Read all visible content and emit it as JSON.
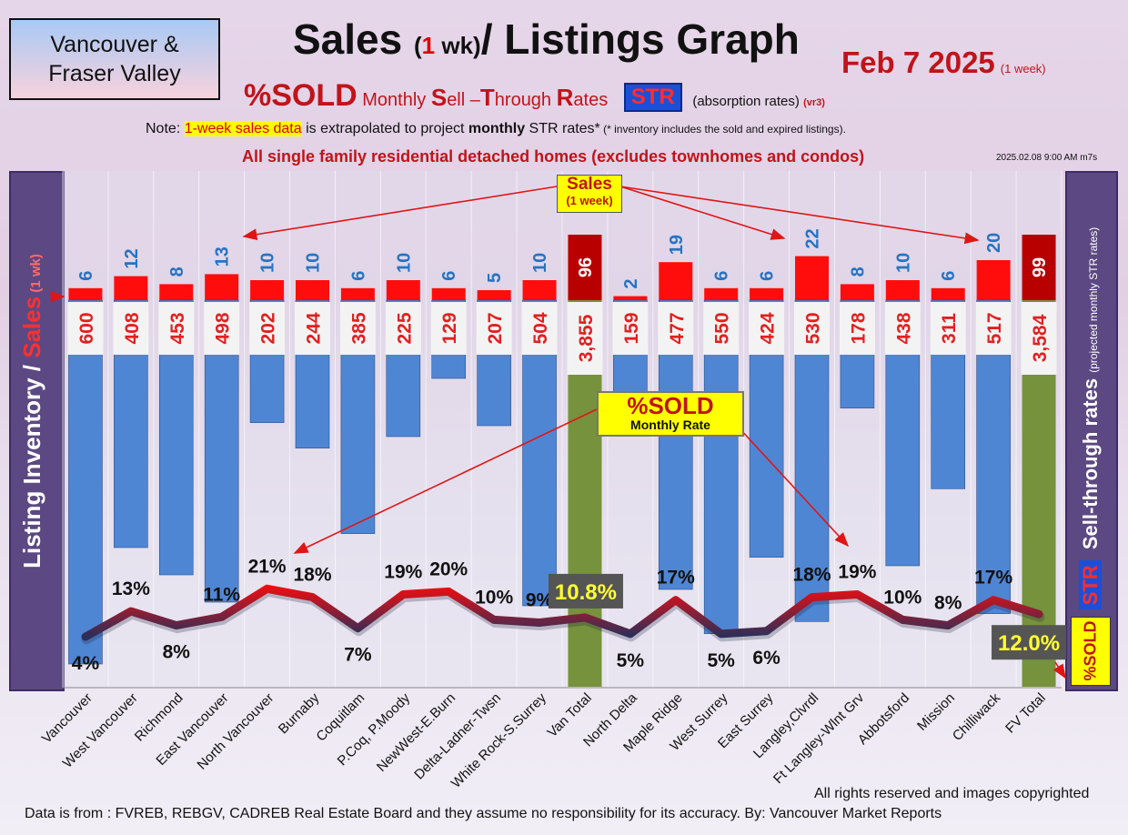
{
  "region": "Vancouver &\nFraser Valley",
  "title": {
    "pre": "Sales",
    "paren_open": "(",
    "one": "1",
    "wk": " wk)",
    "post": "/ Listings Graph"
  },
  "date": {
    "main": "Feb 7  2025",
    "sub": "(1 week)"
  },
  "subtitle": {
    "sold": "%SOLD",
    "p1": " Monthly ",
    "c1": "S",
    "p2": "ell –",
    "c2": "T",
    "p3": "hrough ",
    "c3": "R",
    "p4": "ates",
    "str": "STR",
    "absorb": "(absorption rates)",
    "ver": "(vr3)"
  },
  "note": {
    "pre": "Note: ",
    "highlight": "1-week sales data",
    "mid": " is extrapolated to project ",
    "bold": "monthly",
    "post": " STR rates*",
    "small": " (* inventory includes the sold and expired listings)."
  },
  "subhead": "All single family residential detached homes (excludes townhomes and condos)",
  "timestamp": "2025.02.08 9:00 AM m7s",
  "left_axis": {
    "a": "Listing Inventory ",
    "slash": "/ ",
    "sales": "Sales",
    "wk": " (1 wk)"
  },
  "right_axis": {
    "str": "STR",
    "main": " Sell-through rates ",
    "proj": "(projected monthly STR rates)"
  },
  "sold_side": "%SOLD",
  "callouts": {
    "sales_a": "Sales",
    "sales_b": "(1 week)",
    "sold_a": "%SOLD",
    "sold_b": "Monthly Rate"
  },
  "footer": {
    "rights": "All rights reserved and  images copyrighted",
    "source": "Data is from : FVREB, REBGV, CADREB Real Estate Board and they assume no responsibility for its accuracy. By: Vancouver Market Reports"
  },
  "colors": {
    "inventory_bar": "#4f86d4",
    "total_bar": "#76923c",
    "sales_bar": "#ff0d0d",
    "total_sales_bar": "#b80000",
    "line_high": "#ff0a0a",
    "line_low": "#2a2f5a",
    "panel": "#5c4882"
  },
  "chart_data": {
    "type": "bar",
    "categories": [
      "Vancouver",
      "West Vancouver",
      "Richmond",
      "East Vancouver",
      "North Vancouver",
      "Burnaby",
      "Coquitlam",
      "P.Coq, P.Moody",
      "NewWest-E.Burn",
      "Delta-Ladner-Twsn",
      "White Rock-S.Surrey",
      "Van Total",
      "North Delta",
      "Maple Ridge",
      "West Surrey",
      "East Surrey",
      "Langley,Clvrdl",
      "Ft Langley-Wlnt Grv",
      "Abbotsford",
      "Mission",
      "Chilliwack",
      "FV Total"
    ],
    "is_total": [
      false,
      false,
      false,
      false,
      false,
      false,
      false,
      false,
      false,
      false,
      false,
      true,
      false,
      false,
      false,
      false,
      false,
      false,
      false,
      false,
      false,
      true
    ],
    "series": [
      {
        "name": "Sales",
        "values": [
          6,
          12,
          8,
          13,
          10,
          10,
          6,
          10,
          6,
          5,
          10,
          96,
          2,
          19,
          6,
          6,
          22,
          8,
          10,
          6,
          20,
          99
        ]
      },
      {
        "name": "Listing Inventory",
        "values": [
          600,
          408,
          453,
          498,
          202,
          244,
          385,
          225,
          129,
          207,
          504,
          3855,
          159,
          477,
          550,
          424,
          530,
          178,
          438,
          311,
          517,
          3584
        ]
      },
      {
        "name": "%SOLD",
        "values": [
          4,
          13,
          8,
          11,
          21,
          18,
          7,
          19,
          20,
          10,
          9,
          10.8,
          5,
          17,
          5,
          6,
          18,
          19,
          10,
          8,
          17,
          12.0
        ]
      }
    ],
    "labels": {
      "sales": [
        "6",
        "12",
        "8",
        "13",
        "10",
        "10",
        "6",
        "10",
        "6",
        "5",
        "10",
        "96",
        "2",
        "19",
        "6",
        "6",
        "22",
        "8",
        "10",
        "6",
        "20",
        "99"
      ],
      "inventory": [
        "600",
        "408",
        "453",
        "498",
        "202",
        "244",
        "385",
        "225",
        "129",
        "207",
        "504",
        "3,855",
        "159",
        "477",
        "550",
        "424",
        "530",
        "178",
        "438",
        "311",
        "517",
        "3,584"
      ],
      "pct": [
        "4%",
        "13%",
        "8%",
        "11%",
        "21%",
        "18%",
        "7%",
        "19%",
        "20%",
        "10%",
        "9%",
        "10.8%",
        "5%",
        "17%",
        "5%",
        "6%",
        "18%",
        "19%",
        "10%",
        "8%",
        "17%",
        "12.0%"
      ]
    },
    "ylabel": "Listing Inventory / Sales (1 wk)",
    "y2label": "STR Sell-through rates (projected monthly STR rates)",
    "grid": true
  }
}
